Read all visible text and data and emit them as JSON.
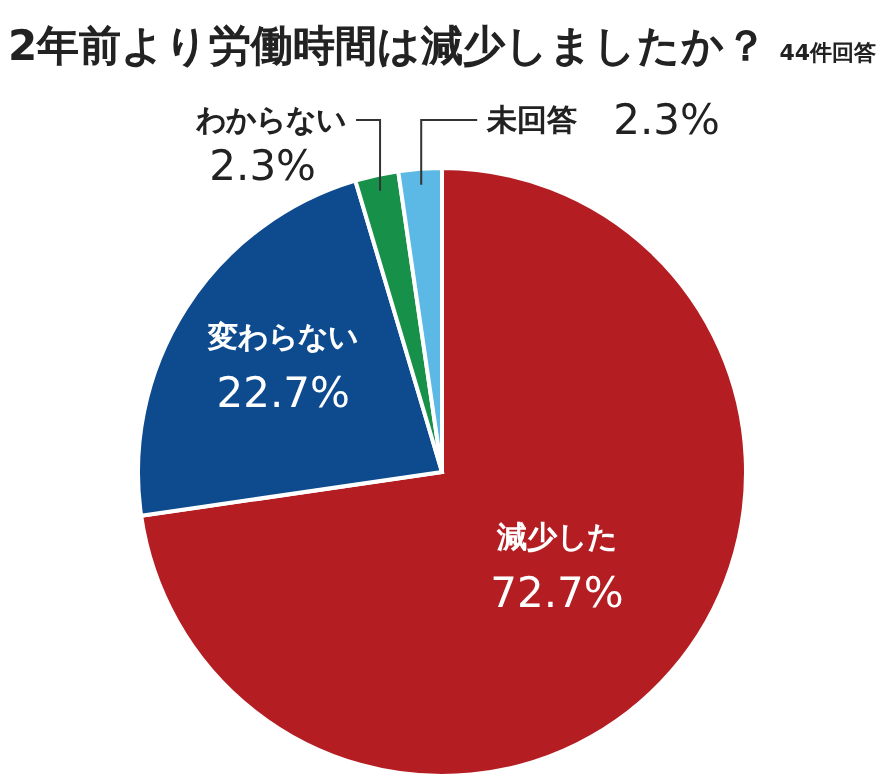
{
  "chart_data": {
    "type": "pie",
    "title": "2年前より労働時間は減少しましたか？",
    "subtitle": "44件回答",
    "categories": [
      "減少した",
      "変わらない",
      "わからない",
      "未回答"
    ],
    "values": [
      72.7,
      22.7,
      2.3,
      2.3
    ],
    "colors": [
      "#b41e23",
      "#0d4a8e",
      "#17914a",
      "#5cb8e4"
    ],
    "value_labels": [
      "72.7%",
      "22.7%",
      "2.3%",
      "2.3%"
    ]
  }
}
